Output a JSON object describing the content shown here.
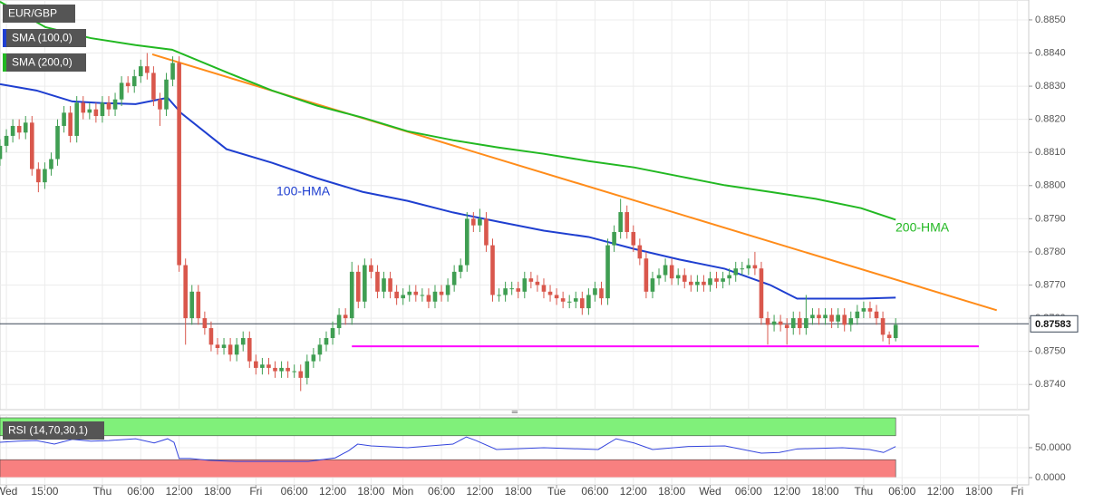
{
  "chart_data": [
    {
      "type": "candlestick",
      "title": "EUR/GBP",
      "x": [
        -16,
        -15,
        -14,
        -13,
        -12,
        -11,
        -10,
        -9,
        -8,
        -7,
        -6,
        -5,
        -4,
        -3,
        -2,
        -1,
        0,
        1,
        2,
        3,
        4,
        5,
        6,
        7,
        8,
        9,
        10,
        11,
        12,
        13,
        14,
        15,
        16,
        17,
        18,
        19,
        20,
        21,
        22,
        23,
        24,
        25,
        26,
        27,
        28,
        29,
        30,
        31,
        32,
        33,
        34,
        35,
        36,
        37,
        38,
        39,
        40,
        41,
        42,
        43,
        44,
        45,
        46,
        47,
        48,
        49,
        50,
        51,
        52,
        53,
        54,
        55,
        56,
        57,
        58,
        59,
        60,
        61,
        62,
        63,
        64,
        65,
        66,
        67,
        68,
        69,
        70,
        71,
        72,
        73,
        74,
        75,
        76,
        77,
        78,
        79,
        80,
        81,
        82,
        83,
        84,
        85,
        86,
        87,
        88,
        89,
        90,
        91,
        92,
        93,
        94,
        95,
        96,
        97,
        98,
        99,
        100,
        101,
        102,
        103,
        104,
        105,
        106,
        107,
        108,
        109,
        110,
        111,
        112,
        113,
        114,
        115,
        116,
        117,
        118,
        119,
        120,
        121,
        122,
        123,
        124
      ],
      "open": [
        0.8808,
        0.8812,
        0.8815,
        0.8818,
        0.8816,
        0.8819,
        0.8805,
        0.8801,
        0.8805,
        0.8808,
        0.8818,
        0.8822,
        0.8815,
        0.8825,
        0.8822,
        0.8823,
        0.8821,
        0.8825,
        0.8823,
        0.8826,
        0.8831,
        0.883,
        0.8833,
        0.8836,
        0.8834,
        0.8826,
        0.8823,
        0.8832,
        0.8837,
        0.8776,
        0.876,
        0.8768,
        0.876,
        0.8757,
        0.8752,
        0.8751,
        0.8752,
        0.8749,
        0.8752,
        0.8754,
        0.8747,
        0.8745,
        0.8746,
        0.8745,
        0.8744,
        0.8745,
        0.8744,
        0.8744,
        0.8742,
        0.8747,
        0.8749,
        0.8752,
        0.8754,
        0.8757,
        0.8761,
        0.876,
        0.8774,
        0.8765,
        0.8776,
        0.8774,
        0.8768,
        0.8772,
        0.8768,
        0.8766,
        0.8767,
        0.8768,
        0.8767,
        0.8767,
        0.8765,
        0.8768,
        0.8767,
        0.877,
        0.8774,
        0.8776,
        0.879,
        0.8788,
        0.879,
        0.8782,
        0.8767,
        0.8767,
        0.8769,
        0.8769,
        0.8768,
        0.8772,
        0.8771,
        0.877,
        0.8768,
        0.8767,
        0.8766,
        0.8765,
        0.8765,
        0.8766,
        0.8763,
        0.8767,
        0.8769,
        0.8766,
        0.8782,
        0.8786,
        0.8792,
        0.8786,
        0.8782,
        0.8778,
        0.8768,
        0.8772,
        0.8773,
        0.8776,
        0.8772,
        0.8773,
        0.8771,
        0.877,
        0.8771,
        0.877,
        0.8772,
        0.8771,
        0.8772,
        0.8773,
        0.8775,
        0.8775,
        0.8776,
        0.8775,
        0.876,
        0.8758,
        0.8759,
        0.8758,
        0.8757,
        0.876,
        0.8757,
        0.876,
        0.8761,
        0.876,
        0.8761,
        0.8759,
        0.8761,
        0.8758,
        0.876,
        0.8762,
        0.8763,
        0.8762,
        0.876,
        0.8755,
        0.8754
      ],
      "high": [
        0.8814,
        0.8817,
        0.882,
        0.882,
        0.8821,
        0.8821,
        0.8807,
        0.8807,
        0.881,
        0.882,
        0.8824,
        0.8824,
        0.8827,
        0.8827,
        0.8825,
        0.8825,
        0.8827,
        0.8827,
        0.8828,
        0.8833,
        0.8833,
        0.8835,
        0.8838,
        0.884,
        0.8836,
        0.8828,
        0.8834,
        0.8839,
        0.8839,
        0.8778,
        0.877,
        0.877,
        0.8762,
        0.8759,
        0.8754,
        0.8754,
        0.8754,
        0.8754,
        0.8756,
        0.8756,
        0.8749,
        0.8748,
        0.8748,
        0.8747,
        0.8747,
        0.8747,
        0.8746,
        0.8746,
        0.8749,
        0.8751,
        0.8754,
        0.8756,
        0.8759,
        0.8763,
        0.8763,
        0.8777,
        0.8776,
        0.8778,
        0.8778,
        0.8776,
        0.8774,
        0.8774,
        0.877,
        0.8769,
        0.877,
        0.877,
        0.8769,
        0.8769,
        0.877,
        0.877,
        0.8772,
        0.8776,
        0.8778,
        0.8792,
        0.8792,
        0.8793,
        0.8792,
        0.8784,
        0.8769,
        0.8771,
        0.8771,
        0.8771,
        0.8774,
        0.8774,
        0.8773,
        0.8772,
        0.877,
        0.8769,
        0.8768,
        0.8767,
        0.8768,
        0.8768,
        0.8769,
        0.8771,
        0.8771,
        0.8784,
        0.8788,
        0.8796,
        0.8794,
        0.8788,
        0.8784,
        0.878,
        0.8774,
        0.8775,
        0.8778,
        0.8778,
        0.8775,
        0.8775,
        0.8773,
        0.8773,
        0.8773,
        0.8774,
        0.8774,
        0.8774,
        0.8775,
        0.8777,
        0.8777,
        0.8778,
        0.878,
        0.8777,
        0.8762,
        0.8761,
        0.8761,
        0.876,
        0.8762,
        0.8762,
        0.8767,
        0.8763,
        0.8763,
        0.8763,
        0.8763,
        0.8763,
        0.8763,
        0.8762,
        0.8764,
        0.8765,
        0.8765,
        0.8764,
        0.8762,
        0.8756,
        0.876
      ],
      "low": [
        0.8806,
        0.881,
        0.8813,
        0.8814,
        0.8814,
        0.8803,
        0.8798,
        0.8799,
        0.8803,
        0.8806,
        0.8816,
        0.8813,
        0.8813,
        0.882,
        0.882,
        0.8819,
        0.8819,
        0.8821,
        0.8821,
        0.8824,
        0.8828,
        0.8828,
        0.8831,
        0.8832,
        0.8824,
        0.8818,
        0.8821,
        0.883,
        0.8774,
        0.8752,
        0.8758,
        0.8758,
        0.8755,
        0.875,
        0.8749,
        0.8749,
        0.8747,
        0.8747,
        0.875,
        0.8745,
        0.8743,
        0.8743,
        0.8743,
        0.8742,
        0.8742,
        0.8742,
        0.8742,
        0.8738,
        0.874,
        0.8745,
        0.8747,
        0.875,
        0.8752,
        0.8755,
        0.8758,
        0.8758,
        0.8763,
        0.8763,
        0.8772,
        0.8766,
        0.8766,
        0.8766,
        0.8764,
        0.8764,
        0.8765,
        0.8765,
        0.8765,
        0.8763,
        0.8763,
        0.8765,
        0.8765,
        0.8768,
        0.8772,
        0.8774,
        0.8786,
        0.8786,
        0.878,
        0.8765,
        0.8765,
        0.8765,
        0.8767,
        0.8766,
        0.8766,
        0.8769,
        0.8768,
        0.8766,
        0.8765,
        0.8764,
        0.8763,
        0.8763,
        0.8763,
        0.8761,
        0.8761,
        0.8765,
        0.8764,
        0.8764,
        0.878,
        0.8784,
        0.8784,
        0.878,
        0.8776,
        0.8766,
        0.8766,
        0.877,
        0.8771,
        0.877,
        0.877,
        0.8769,
        0.8768,
        0.8768,
        0.8768,
        0.8768,
        0.8769,
        0.8769,
        0.877,
        0.8771,
        0.8773,
        0.8773,
        0.8773,
        0.8758,
        0.8752,
        0.8756,
        0.8756,
        0.8752,
        0.8755,
        0.8755,
        0.8755,
        0.8758,
        0.8758,
        0.8758,
        0.8757,
        0.8757,
        0.8756,
        0.8756,
        0.8758,
        0.876,
        0.876,
        0.8758,
        0.8753,
        0.8752,
        0.8753
      ],
      "close": [
        0.8812,
        0.8815,
        0.8818,
        0.8816,
        0.8819,
        0.8805,
        0.8801,
        0.8805,
        0.8808,
        0.8818,
        0.8822,
        0.8815,
        0.8825,
        0.8822,
        0.8823,
        0.8821,
        0.8825,
        0.8823,
        0.8826,
        0.8831,
        0.883,
        0.8833,
        0.8836,
        0.8834,
        0.8826,
        0.8823,
        0.8832,
        0.8837,
        0.8776,
        0.876,
        0.8768,
        0.876,
        0.8757,
        0.8752,
        0.8751,
        0.8752,
        0.8749,
        0.8752,
        0.8754,
        0.8747,
        0.8745,
        0.8746,
        0.8745,
        0.8744,
        0.8745,
        0.8744,
        0.8744,
        0.8742,
        0.8747,
        0.8749,
        0.8752,
        0.8754,
        0.8757,
        0.8761,
        0.876,
        0.8774,
        0.8765,
        0.8776,
        0.8774,
        0.8768,
        0.8772,
        0.8768,
        0.8766,
        0.8767,
        0.8768,
        0.8767,
        0.8767,
        0.8765,
        0.8768,
        0.8767,
        0.877,
        0.8774,
        0.8776,
        0.879,
        0.8788,
        0.879,
        0.8782,
        0.8767,
        0.8767,
        0.8769,
        0.8769,
        0.8768,
        0.8772,
        0.8771,
        0.877,
        0.8768,
        0.8767,
        0.8766,
        0.8765,
        0.8765,
        0.8766,
        0.8763,
        0.8767,
        0.8769,
        0.8766,
        0.8782,
        0.8786,
        0.8792,
        0.8786,
        0.8782,
        0.8778,
        0.8768,
        0.8772,
        0.8773,
        0.8776,
        0.8772,
        0.8773,
        0.8771,
        0.877,
        0.8771,
        0.877,
        0.8772,
        0.8771,
        0.8772,
        0.8773,
        0.8775,
        0.8775,
        0.8776,
        0.8775,
        0.876,
        0.8758,
        0.8759,
        0.8758,
        0.8757,
        0.876,
        0.8757,
        0.876,
        0.8761,
        0.876,
        0.8761,
        0.8759,
        0.8761,
        0.8758,
        0.876,
        0.8762,
        0.8763,
        0.8762,
        0.876,
        0.8755,
        0.8754,
        0.8758
      ],
      "up_color": "#3f9e52",
      "down_color": "#d9574c",
      "xlim": [
        -16,
        144.8
      ],
      "ylim": [
        0.87324,
        0.8856
      ],
      "yticks": [
        {
          "value": 0.874,
          "label": "0.8740"
        },
        {
          "value": 0.875,
          "label": "0.8750"
        },
        {
          "value": 0.876,
          "label": "0.8760"
        },
        {
          "value": 0.877,
          "label": "0.8770"
        },
        {
          "value": 0.878,
          "label": "0.8780"
        },
        {
          "value": 0.879,
          "label": "0.8790"
        },
        {
          "value": 0.88,
          "label": "0.8800"
        },
        {
          "value": 0.881,
          "label": "0.8810"
        },
        {
          "value": 0.882,
          "label": "0.8820"
        },
        {
          "value": 0.883,
          "label": "0.8830"
        },
        {
          "value": 0.884,
          "label": "0.8840"
        },
        {
          "value": 0.885,
          "label": "0.8850"
        }
      ],
      "last_price": 0.87583,
      "grid": true,
      "series": [
        {
          "name": "SMA (100,0)",
          "label": "100-HMA",
          "color": "#1f3fd0",
          "x": [
            -16,
            -10.3,
            -4.7,
            0,
            5.2,
            10.2,
            12.3,
            19.4,
            26.5,
            33.6,
            40.7,
            47.7,
            54.8,
            61.9,
            69,
            76,
            83.1,
            90.2,
            97.3,
            104.4,
            108.6,
            111.5,
            118.6,
            124
          ],
          "values": [
            0.88306,
            0.88287,
            0.88254,
            0.88249,
            0.88246,
            0.88265,
            0.88219,
            0.8811,
            0.88069,
            0.88022,
            0.87981,
            0.87954,
            0.87919,
            0.87891,
            0.87864,
            0.87845,
            0.87809,
            0.87777,
            0.87749,
            0.877,
            0.87659,
            0.87659,
            0.87659,
            0.87662
          ]
        },
        {
          "name": "SMA (200,0)",
          "label": "200-HMA",
          "color": "#22b822",
          "x": [
            -16,
            -8.9,
            -1.8,
            5.2,
            10.9,
            19.4,
            26.5,
            33.6,
            40.7,
            47.7,
            54.8,
            61.9,
            69,
            76,
            83.1,
            90.2,
            97.3,
            104.4,
            111.5,
            118.6,
            124
          ],
          "values": [
            0.88555,
            0.88478,
            0.88445,
            0.88424,
            0.8841,
            0.88342,
            0.88287,
            0.88241,
            0.88205,
            0.88164,
            0.88137,
            0.88115,
            0.88096,
            0.88074,
            0.88055,
            0.88028,
            0.88001,
            0.87981,
            0.8796,
            0.87932,
            0.87897
          ]
        }
      ],
      "trendlines": [
        {
          "color": "#ff8c1a",
          "x": [
            7.8,
            139.8
          ],
          "values": [
            0.88396,
            0.87624
          ]
        },
        {
          "color": "#ff00ff",
          "x": [
            39,
            137
          ],
          "values": [
            0.87515,
            0.87515
          ]
        }
      ]
    },
    {
      "type": "line",
      "title": "RSI (14,70,30,1)",
      "xlim": [
        -16,
        144.8
      ],
      "ylim": [
        0,
        100
      ],
      "xticks": [
        {
          "value": -15,
          "label": "Wed"
        },
        {
          "value": -9,
          "label": "15:00"
        },
        {
          "value": 0,
          "label": "Thu"
        },
        {
          "value": 6,
          "label": "06:00"
        },
        {
          "value": 12,
          "label": "12:00"
        },
        {
          "value": 18,
          "label": "18:00"
        },
        {
          "value": 24,
          "label": "Fri"
        },
        {
          "value": 30,
          "label": "06:00"
        },
        {
          "value": 36,
          "label": "12:00"
        },
        {
          "value": 42,
          "label": "18:00"
        },
        {
          "value": 47,
          "label": "Mon"
        },
        {
          "value": 53,
          "label": "06:00"
        },
        {
          "value": 59,
          "label": "12:00"
        },
        {
          "value": 65,
          "label": "18:00"
        },
        {
          "value": 71,
          "label": "Tue"
        },
        {
          "value": 77,
          "label": "06:00"
        },
        {
          "value": 83,
          "label": "12:00"
        },
        {
          "value": 89,
          "label": "18:00"
        },
        {
          "value": 95,
          "label": "Wed"
        },
        {
          "value": 101,
          "label": "06:00"
        },
        {
          "value": 107,
          "label": "12:00"
        },
        {
          "value": 113,
          "label": "18:00"
        },
        {
          "value": 119,
          "label": "Thu"
        },
        {
          "value": 125,
          "label": "06:00"
        },
        {
          "value": 131,
          "label": "12:00"
        },
        {
          "value": 137,
          "label": "18:00"
        },
        {
          "value": 143,
          "label": "Fri"
        }
      ],
      "yticks": [
        {
          "value": 0,
          "label": "0.0000"
        },
        {
          "value": 50,
          "label": "50.0000"
        }
      ],
      "bands": [
        {
          "from": 70,
          "to": 100,
          "color": "#80f07a"
        },
        {
          "from": 0,
          "to": 30,
          "color": "#f88080"
        }
      ],
      "series": [
        {
          "color": "#3344dd",
          "x": [
            -16,
            -13.2,
            -10.3,
            -7.5,
            -4.7,
            -1.8,
            1,
            5.2,
            8.1,
            10.2,
            11.2,
            12,
            13.7,
            16.6,
            20.8,
            26.5,
            32.2,
            36.4,
            38.5,
            39.9,
            42,
            47.7,
            54.8,
            56.9,
            58.4,
            61.6,
            69,
            77.5,
            80.3,
            83.1,
            86,
            91.6,
            97.3,
            103,
            105.8,
            108.6,
            115.7,
            119.9,
            122.1,
            124
          ],
          "values": [
            59,
            61,
            62,
            56,
            64,
            61,
            62,
            65,
            58,
            65,
            59,
            32,
            32,
            29,
            27,
            27,
            27,
            33,
            45,
            56,
            53,
            50,
            56,
            68,
            62,
            47,
            50,
            47,
            65,
            58,
            47,
            52,
            53,
            41,
            42,
            48,
            50,
            47,
            42,
            52
          ]
        }
      ]
    }
  ]
}
